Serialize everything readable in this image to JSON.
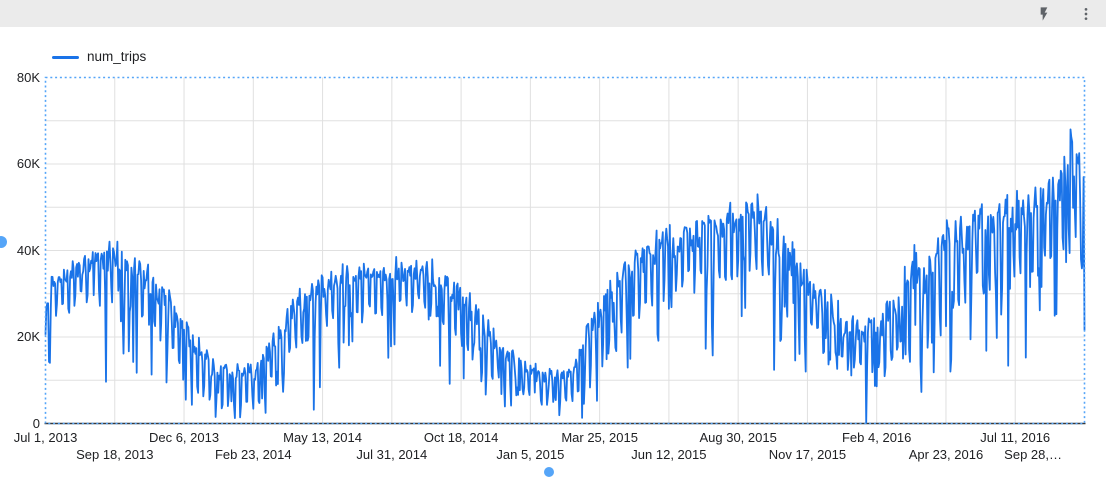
{
  "toolbar": {
    "icons": [
      {
        "name": "lightning",
        "meaning": "run/refresh query"
      },
      {
        "name": "kebab-menu",
        "meaning": "more options"
      }
    ]
  },
  "legend": {
    "label": "num_trips",
    "swatch_color": "#1a73e8"
  },
  "selection": {
    "border_color": "#55a5f8",
    "handle_color": "#55a5f8",
    "style": "dotted rectangle around plot with round resize handles"
  },
  "colors": {
    "line": "#1a73e8",
    "grid": "#e0e0e0",
    "axis": "#37393b",
    "label": "#202124",
    "topbar_bg": "#ebebeb",
    "icon": "#5f6368",
    "card_bg": "#ffffff"
  },
  "chart_data": {
    "type": "line",
    "title": "",
    "legend_position": "top-left",
    "grid": true,
    "series": [
      {
        "name": "num_trips",
        "color": "#1a73e8"
      }
    ],
    "x_axis": {
      "total_days": 1185,
      "tick_interval_days": 79,
      "tick_labels": [
        "Jul 1, 2013",
        "Sep 18, 2013",
        "Dec 6, 2013",
        "Feb 23, 2014",
        "May 13, 2014",
        "Jul 31, 2014",
        "Oct 18, 2014",
        "Jan 5, 2015",
        "Mar 25, 2015",
        "Jun 12, 2015",
        "Aug 30, 2015",
        "Nov 17, 2015",
        "Feb 4, 2016",
        "Apr 23, 2016",
        "Jul 11, 2016",
        "Sep 28,…"
      ],
      "label_rows": "staggered (even ticks upper row, odd ticks lower row)"
    },
    "y_axis": {
      "min": 0,
      "max": 80000,
      "tick_labels": [
        "0",
        "20K",
        "40K",
        "60K",
        "80K"
      ],
      "gridline_step": 10000
    },
    "pattern": "daily values with weekday-high / weekend-low weekly oscillation and rain-day dips",
    "envelope_points_kilo": [
      [
        0,
        20,
        30
      ],
      [
        10,
        24,
        36
      ],
      [
        45,
        26,
        39
      ],
      [
        80,
        27,
        41
      ],
      [
        105,
        24,
        38
      ],
      [
        125,
        20,
        34
      ],
      [
        140,
        15,
        30
      ],
      [
        160,
        9,
        24
      ],
      [
        175,
        6,
        20
      ],
      [
        190,
        2.5,
        15
      ],
      [
        210,
        1.5,
        14
      ],
      [
        240,
        2,
        14
      ],
      [
        255,
        5,
        19
      ],
      [
        270,
        9,
        25
      ],
      [
        285,
        14,
        30
      ],
      [
        305,
        18,
        33
      ],
      [
        320,
        21,
        35
      ],
      [
        340,
        24,
        37
      ],
      [
        370,
        24,
        36
      ],
      [
        400,
        25,
        37
      ],
      [
        430,
        25,
        38
      ],
      [
        455,
        21,
        35
      ],
      [
        475,
        16,
        31
      ],
      [
        500,
        11,
        26
      ],
      [
        520,
        8,
        20
      ],
      [
        540,
        5,
        16
      ],
      [
        565,
        3,
        13
      ],
      [
        595,
        2.5,
        12
      ],
      [
        615,
        6,
        22
      ],
      [
        635,
        12,
        30
      ],
      [
        655,
        18,
        38
      ],
      [
        675,
        23,
        41
      ],
      [
        700,
        26,
        44
      ],
      [
        730,
        28,
        46
      ],
      [
        760,
        30,
        49
      ],
      [
        790,
        32,
        51
      ],
      [
        815,
        32,
        53
      ],
      [
        830,
        27,
        47
      ],
      [
        850,
        22,
        42
      ],
      [
        870,
        17,
        35
      ],
      [
        890,
        14,
        31
      ],
      [
        910,
        10,
        26
      ],
      [
        930,
        9,
        24
      ],
      [
        950,
        9,
        26
      ],
      [
        975,
        12,
        32
      ],
      [
        985,
        15,
        42
      ],
      [
        1000,
        13,
        37
      ],
      [
        1015,
        18,
        43
      ],
      [
        1035,
        20,
        47
      ],
      [
        1055,
        25,
        49
      ],
      [
        1075,
        28,
        51
      ],
      [
        1100,
        30,
        52
      ],
      [
        1125,
        32,
        54
      ],
      [
        1145,
        34,
        57
      ],
      [
        1160,
        36,
        62
      ],
      [
        1172,
        38,
        68
      ],
      [
        1180,
        36,
        62
      ],
      [
        1185,
        30,
        58
      ]
    ],
    "event_points_kilo": [
      [
        0,
        20.5
      ],
      [
        194,
        1.5
      ],
      [
        306,
        3.2
      ],
      [
        612,
        1.3
      ],
      [
        812,
        53
      ],
      [
        936,
        0.15
      ],
      [
        1032,
        12
      ],
      [
        1169,
        68
      ],
      [
        1184,
        57
      ],
      [
        1185,
        21.5
      ]
    ]
  }
}
